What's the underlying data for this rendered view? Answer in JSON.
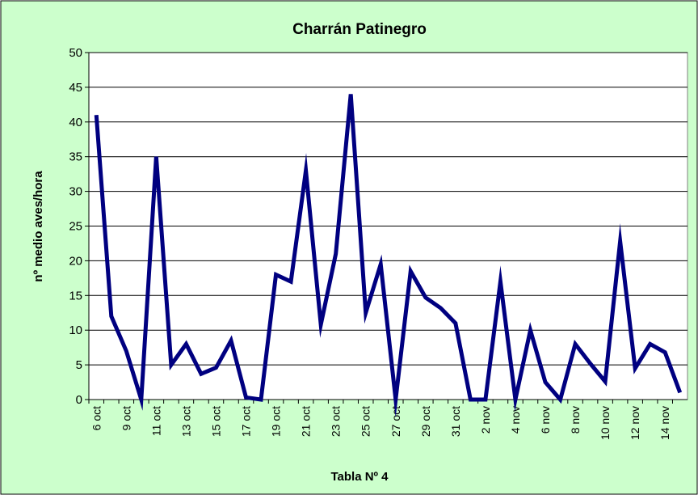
{
  "chart_data": {
    "type": "line",
    "title": "Charrán Patinegro",
    "x_label": "Tabla Nº 4",
    "y_label": "nº medio aves/hora",
    "categories": [
      "6 oct",
      null,
      "9 oct",
      null,
      "11 oct",
      null,
      "13 oct",
      null,
      "15 oct",
      null,
      "17 oct",
      null,
      "19 oct",
      null,
      "21 oct",
      null,
      "23 oct",
      null,
      "25 oct",
      null,
      "27 oct",
      null,
      "29 oct",
      null,
      "31 oct",
      null,
      "2 nov",
      null,
      "4 nov",
      null,
      "6 nov",
      null,
      "8 nov",
      null,
      "10 nov",
      null,
      "12 nov",
      null,
      "14 nov",
      null
    ],
    "series": [
      {
        "name": "Charrán Patinegro",
        "color": "#000080",
        "values": [
          41,
          12,
          7,
          0,
          35,
          5,
          8,
          3.7,
          4.6,
          8.5,
          0.3,
          0,
          18,
          17,
          33,
          10.8,
          21,
          44,
          12.5,
          19.5,
          0,
          18.5,
          14.7,
          13.2,
          11,
          0,
          0,
          17,
          0,
          10,
          2.5,
          0,
          8,
          5.2,
          2.6,
          22.8,
          4.5,
          8,
          6.8,
          1
        ]
      }
    ],
    "ylim": [
      0,
      50
    ],
    "yticks": [
      0,
      5,
      10,
      15,
      20,
      25,
      30,
      35,
      40,
      45,
      50
    ],
    "grid": true
  }
}
